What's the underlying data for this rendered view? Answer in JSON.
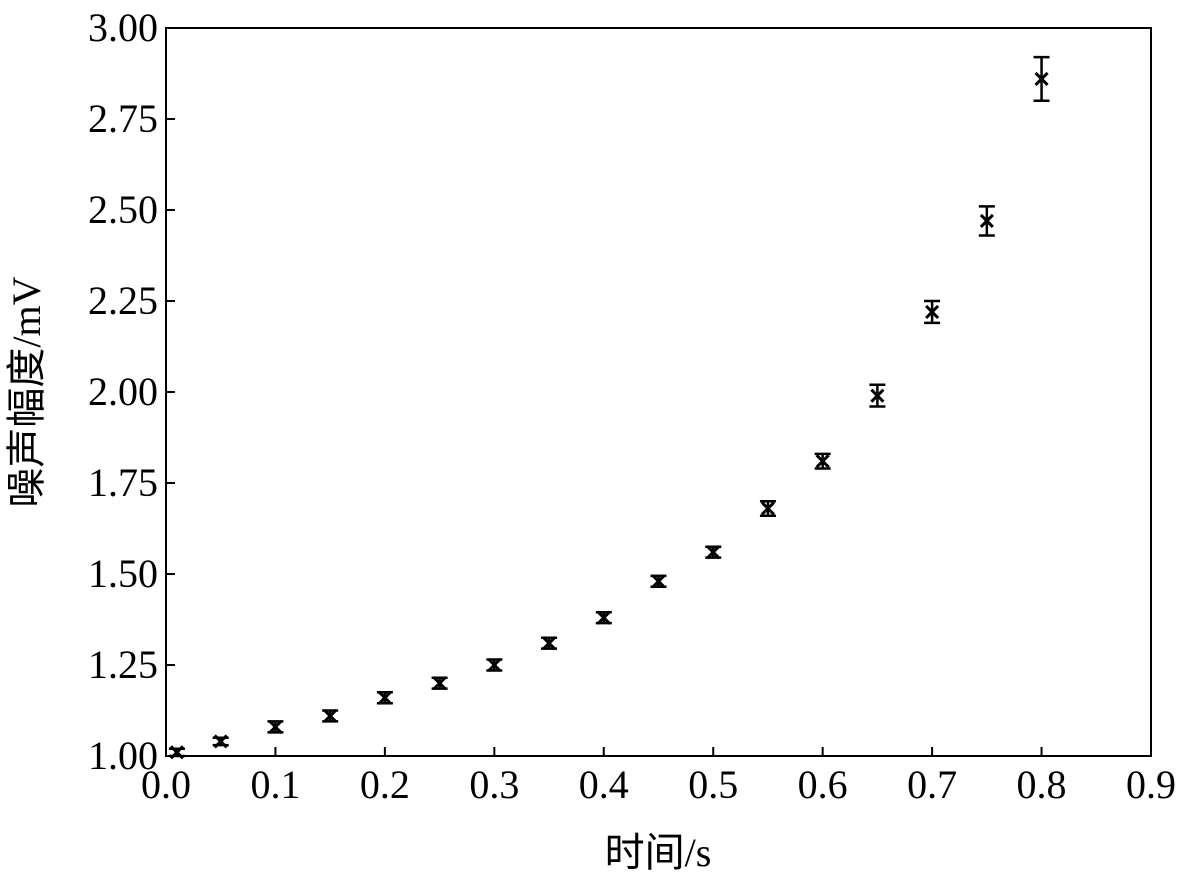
{
  "chart_data": {
    "type": "scatter",
    "title": "",
    "xlabel": "时间/s",
    "ylabel": "噪声幅度/mV",
    "xlim": [
      0.0,
      0.9
    ],
    "ylim": [
      1.0,
      3.0
    ],
    "x_ticks": [
      "0.0",
      "0.1",
      "0.2",
      "0.3",
      "0.4",
      "0.5",
      "0.6",
      "0.7",
      "0.8",
      "0.9"
    ],
    "y_ticks": [
      "1.00",
      "1.25",
      "1.50",
      "1.75",
      "2.00",
      "2.25",
      "2.50",
      "2.75",
      "3.00"
    ],
    "grid": false,
    "legend": "none",
    "marker": "x",
    "marker_color": "#000000",
    "series": [
      {
        "x": [
          0.01,
          0.05,
          0.1,
          0.15,
          0.2,
          0.25,
          0.3,
          0.35,
          0.4,
          0.45,
          0.5,
          0.55,
          0.6,
          0.65,
          0.7,
          0.75,
          0.8
        ],
        "y": [
          1.01,
          1.04,
          1.08,
          1.11,
          1.16,
          1.2,
          1.25,
          1.31,
          1.38,
          1.48,
          1.56,
          1.68,
          1.81,
          1.99,
          2.22,
          2.47,
          2.86
        ],
        "error": [
          0.01,
          0.01,
          0.015,
          0.015,
          0.015,
          0.015,
          0.015,
          0.015,
          0.015,
          0.015,
          0.015,
          0.02,
          0.02,
          0.03,
          0.03,
          0.04,
          0.06
        ]
      }
    ]
  }
}
